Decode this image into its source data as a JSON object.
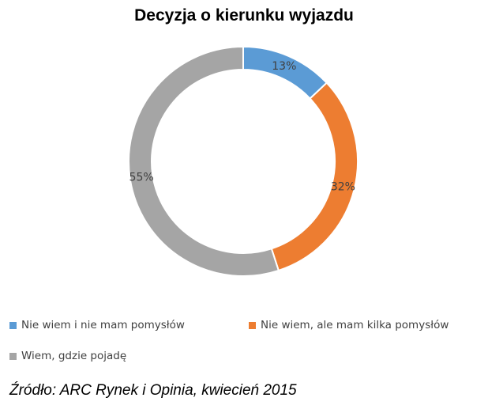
{
  "chart_data": {
    "type": "pie",
    "title": "Decyzja o kierunku wyjazdu",
    "donut": true,
    "categories": [
      "Nie wiem i nie mam pomysłów",
      "Nie wiem, ale mam kilka pomysłów",
      "Wiem, gdzie pojadę"
    ],
    "values": [
      13,
      32,
      55
    ],
    "value_labels": [
      "13%",
      "32%",
      "55%"
    ],
    "colors": [
      "#5b9bd5",
      "#ed7d31",
      "#a5a5a5"
    ],
    "legend_position": "bottom"
  },
  "source": "Źródło: ARC Rynek i Opinia, kwiecień 2015"
}
